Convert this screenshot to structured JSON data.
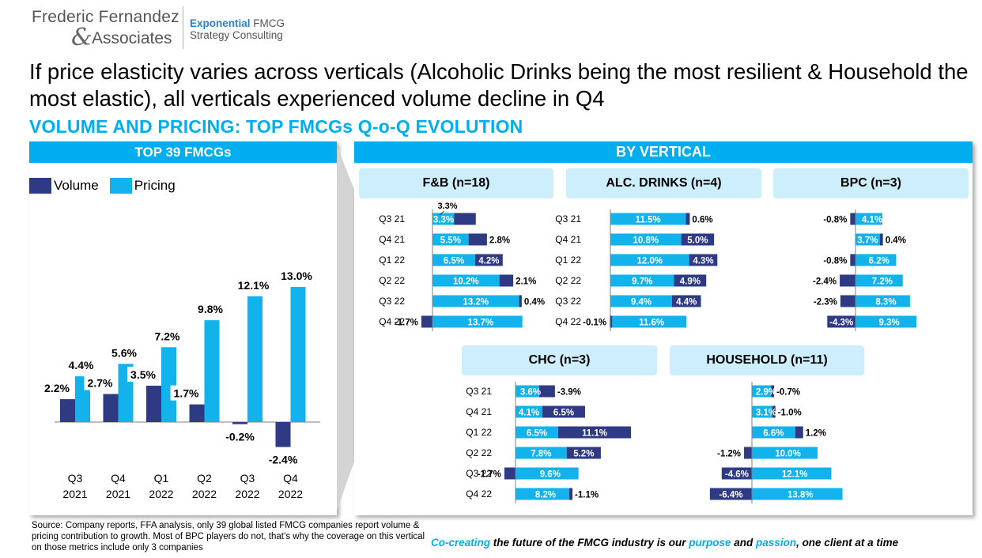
{
  "logo": {
    "name": "Frederic Fernandez",
    "amp": "&",
    "assoc": "Associates",
    "tag_bold": "Exponential",
    "tag_rest": " FMCG",
    "tag_line2": "Strategy Consulting"
  },
  "headline": "If price elasticity varies across verticals (Alcoholic Drinks being the most resilient & Household the most elastic), all verticals experienced volume decline in Q4",
  "subhead": "VOLUME AND PRICING: TOP FMCGs Q-o-Q EVOLUTION",
  "left_panel": {
    "title": "TOP 39 FMCGs",
    "legend": {
      "volume": "Volume",
      "pricing": "Pricing"
    }
  },
  "right_panel": {
    "title": "BY VERTICAL"
  },
  "colors": {
    "volume": "#2e3a84",
    "pricing": "#12b2ec",
    "accent": "#00aeef",
    "box": "#cdeefc"
  },
  "chart_data": [
    {
      "type": "bar",
      "title": "TOP 39 FMCGs",
      "categories": [
        "Q3 2021",
        "Q4 2021",
        "Q1 2022",
        "Q2 2022",
        "Q3 2022",
        "Q4 2022"
      ],
      "category_lines": [
        [
          "Q3",
          "2021"
        ],
        [
          "Q4",
          "2021"
        ],
        [
          "Q1",
          "2022"
        ],
        [
          "Q2",
          "2022"
        ],
        [
          "Q3",
          "2022"
        ],
        [
          "Q4",
          "2022"
        ]
      ],
      "series": [
        {
          "name": "Volume",
          "values": [
            2.2,
            2.7,
            3.5,
            1.7,
            -0.2,
            -2.4
          ],
          "labels": [
            "2.2%",
            "2.7%",
            "3.5%",
            "1.7%",
            "-0.2%",
            "-2.4%"
          ]
        },
        {
          "name": "Pricing",
          "values": [
            4.4,
            5.6,
            7.2,
            9.8,
            12.1,
            13.0
          ],
          "labels": [
            "4.4%",
            "5.6%",
            "7.2%",
            "9.8%",
            "12.1%",
            "13.0%"
          ]
        }
      ]
    },
    {
      "type": "bar",
      "orientation": "horizontal-stacked",
      "title": "F&B (n=18)",
      "categories": [
        "Q3 21",
        "Q4 21",
        "Q1 22",
        "Q2 22",
        "Q3 22",
        "Q4 22"
      ],
      "series": [
        {
          "name": "Volume",
          "values": [
            3.3,
            2.8,
            4.2,
            2.1,
            0.4,
            -1.7
          ],
          "labels": [
            "3.3%",
            "2.8%",
            "4.2%",
            "2.1%",
            "0.4%",
            "-1.7%"
          ]
        },
        {
          "name": "Pricing",
          "values": [
            3.3,
            5.5,
            6.5,
            10.2,
            13.2,
            13.7
          ],
          "labels": [
            "3.3%",
            "5.5%",
            "6.5%",
            "10.2%",
            "13.2%",
            "13.7%"
          ]
        }
      ]
    },
    {
      "type": "bar",
      "orientation": "horizontal-stacked",
      "title": "ALC. DRINKS (n=4)",
      "categories": [
        "Q3 21",
        "Q4 21",
        "Q1 22",
        "Q2 22",
        "Q3 22",
        "Q4 22"
      ],
      "series": [
        {
          "name": "Volume",
          "values": [
            0.6,
            5.0,
            4.3,
            4.9,
            4.4,
            -0.1
          ],
          "labels": [
            "0.6%",
            "5.0%",
            "4.3%",
            "4.9%",
            "4.4%",
            "-0.1%"
          ]
        },
        {
          "name": "Pricing",
          "values": [
            11.5,
            10.8,
            12.0,
            9.7,
            9.4,
            11.6
          ],
          "labels": [
            "11.5%",
            "10.8%",
            "12.0%",
            "9.7%",
            "9.4%",
            "11.6%"
          ]
        }
      ]
    },
    {
      "type": "bar",
      "orientation": "horizontal-stacked",
      "title": "BPC (n=3)",
      "categories": [
        "Q3 21",
        "Q4 21",
        "Q1 22",
        "Q2 22",
        "Q3 22",
        "Q4 22"
      ],
      "series": [
        {
          "name": "Volume",
          "values": [
            -0.8,
            0.4,
            -0.8,
            -2.4,
            -2.3,
            -4.3
          ],
          "labels": [
            "-0.8%",
            "0.4%",
            "-0.8%",
            "-2.4%",
            "-2.3%",
            "-4.3%"
          ]
        },
        {
          "name": "Pricing",
          "values": [
            4.1,
            3.7,
            6.2,
            7.2,
            8.3,
            9.3
          ],
          "labels": [
            "4.1%",
            "3.7%",
            "6.2%",
            "7.2%",
            "8.3%",
            "9.3%"
          ]
        }
      ]
    },
    {
      "type": "bar",
      "orientation": "horizontal-stacked",
      "title": "CHC (n=3)",
      "categories": [
        "Q3 21",
        "Q4 21",
        "Q1 22",
        "Q2 22",
        "Q3 22",
        "Q4 22"
      ],
      "series": [
        {
          "name": "Volume",
          "values": [
            -3.9,
            6.5,
            11.1,
            5.2,
            -1.7,
            -1.1
          ],
          "labels": [
            "-3.9%",
            "6.5%",
            "11.1%",
            "5.2%",
            "-1.7%",
            "-1.1%"
          ]
        },
        {
          "name": "Pricing",
          "values": [
            3.6,
            4.1,
            6.5,
            7.8,
            9.6,
            8.2
          ],
          "labels": [
            "3.6%",
            "4.1%",
            "6.5%",
            "7.8%",
            "9.6%",
            "8.2%"
          ]
        }
      ]
    },
    {
      "type": "bar",
      "orientation": "horizontal-stacked",
      "title": "HOUSEHOLD (n=11)",
      "categories": [
        "Q3 21",
        "Q4 21",
        "Q1 22",
        "Q2 22",
        "Q3 22",
        "Q4 22"
      ],
      "series": [
        {
          "name": "Volume",
          "values": [
            -0.7,
            -1.0,
            1.2,
            -1.2,
            -4.6,
            -6.4
          ],
          "labels": [
            "-0.7%",
            "-1.0%",
            "1.2%",
            "-1.2%",
            "-4.6%",
            "-6.4%"
          ]
        },
        {
          "name": "Pricing",
          "values": [
            2.9,
            3.1,
            6.6,
            10.0,
            12.1,
            13.8
          ],
          "labels": [
            "2.9%",
            "3.1%",
            "6.6%",
            "10.0%",
            "12.1%",
            "13.8%"
          ]
        }
      ]
    }
  ],
  "source": "Source: Company reports, FFA analysis, only 39 global listed FMCG companies report volume & pricing contribution to growth. Most of BPC players do not, that’s why the coverage on this vertical on those metrics include only 3 companies",
  "tagline": {
    "w1": "Co-creating",
    "t1": " the future of the FMCG industry is our ",
    "w2": "purpose",
    "t2": " and ",
    "w3": "passion",
    "t3": ", one client at a time"
  }
}
